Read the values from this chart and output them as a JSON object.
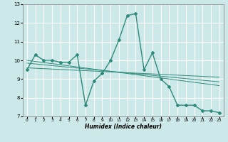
{
  "x_data": [
    0,
    1,
    2,
    3,
    4,
    5,
    6,
    7,
    8,
    9,
    10,
    11,
    12,
    13,
    14,
    15,
    16,
    17,
    18,
    19,
    20,
    21,
    22,
    23
  ],
  "y_main": [
    9.5,
    10.3,
    10.0,
    10.0,
    9.9,
    9.9,
    10.3,
    7.6,
    8.9,
    9.3,
    10.0,
    11.1,
    12.4,
    12.5,
    9.5,
    10.4,
    9.0,
    8.6,
    7.6,
    7.6,
    7.6,
    7.3,
    7.3,
    7.2
  ],
  "trend_lines": [
    {
      "x0": 0,
      "y0": 9.6,
      "x1": 23,
      "y1": 9.1
    },
    {
      "x0": 0,
      "y0": 9.85,
      "x1": 23,
      "y1": 8.85
    },
    {
      "x0": 0,
      "y0": 10.0,
      "x1": 23,
      "y1": 8.65
    }
  ],
  "line_color": "#2e8b7a",
  "bg_color": "#cce8e8",
  "grid_color": "#ffffff",
  "xlabel": "Humidex (Indice chaleur)",
  "xlim": [
    -0.5,
    23.5
  ],
  "ylim": [
    7,
    13
  ],
  "yticks": [
    7,
    8,
    9,
    10,
    11,
    12,
    13
  ],
  "xticks": [
    0,
    1,
    2,
    3,
    4,
    5,
    6,
    7,
    8,
    9,
    10,
    11,
    12,
    13,
    14,
    15,
    16,
    17,
    18,
    19,
    20,
    21,
    22,
    23
  ]
}
